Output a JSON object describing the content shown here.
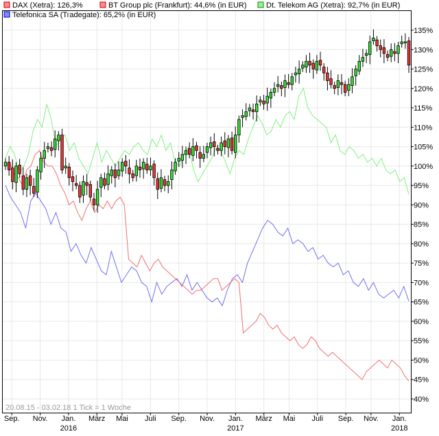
{
  "chart_data": {
    "type": "line",
    "legend": [
      {
        "key": "dax",
        "label": "DAX (Xetra): 126,3%",
        "color": "#ff0000"
      },
      {
        "key": "bt",
        "label": "BT Group plc (Frankfurt): 44,6% (in EUR)",
        "color": "#ff0000"
      },
      {
        "key": "dtk",
        "label": "Dt. Telekom AG (Xetra): 92,7% (in EUR)",
        "color": "#00cc00"
      },
      {
        "key": "tef",
        "label": "Telefonica SA (Tradegate): 65,2% (in EUR)",
        "color": "#0000ff"
      }
    ],
    "footer": "20.08.15 - 03.02.18    1 Tick = 1 Woche",
    "y_ticks": [
      {
        "v": 40,
        "label": "40%"
      },
      {
        "v": 45,
        "label": "45%"
      },
      {
        "v": 50,
        "label": "50%"
      },
      {
        "v": 55,
        "label": "55%"
      },
      {
        "v": 60,
        "label": "60%"
      },
      {
        "v": 65,
        "label": "65%"
      },
      {
        "v": 70,
        "label": "70%"
      },
      {
        "v": 75,
        "label": "75%"
      },
      {
        "v": 80,
        "label": "80%"
      },
      {
        "v": 85,
        "label": "85%"
      },
      {
        "v": 90,
        "label": "90%"
      },
      {
        "v": 95,
        "label": "95%"
      },
      {
        "v": 100,
        "label": "100%"
      },
      {
        "v": 105,
        "label": "105%"
      },
      {
        "v": 110,
        "label": "110%"
      },
      {
        "v": 115,
        "label": "115%"
      },
      {
        "v": 120,
        "label": "120%"
      },
      {
        "v": 125,
        "label": "125%"
      },
      {
        "v": 130,
        "label": "130%"
      },
      {
        "v": 135,
        "label": "135%"
      }
    ],
    "ylim": [
      37,
      140
    ],
    "x_months": [
      {
        "label": "Sep.",
        "week": 2
      },
      {
        "label": "Nov.",
        "week": 11
      },
      {
        "label": "Jan.",
        "week": 20
      },
      {
        "label": "März",
        "week": 29
      },
      {
        "label": "Mai",
        "week": 37
      },
      {
        "label": "Juli",
        "week": 46
      },
      {
        "label": "Sep.",
        "week": 55
      },
      {
        "label": "Nov.",
        "week": 64
      },
      {
        "label": "Jan.",
        "week": 73
      },
      {
        "label": "März",
        "week": 82
      },
      {
        "label": "Mai",
        "week": 90
      },
      {
        "label": "Juli",
        "week": 99
      },
      {
        "label": "Sep.",
        "week": 108
      },
      {
        "label": "Nov.",
        "week": 116
      },
      {
        "label": "Jan.",
        "week": 125
      }
    ],
    "x_years": [
      {
        "label": "2016",
        "week": 20
      },
      {
        "label": "2017",
        "week": 73
      },
      {
        "label": "2018",
        "week": 125
      }
    ],
    "weeks": 129,
    "dax": [
      101,
      99,
      96,
      100,
      98,
      94,
      97,
      95,
      93,
      99,
      102,
      104,
      105,
      104,
      107,
      108,
      99,
      100,
      97,
      96,
      95,
      92,
      96,
      95,
      92,
      90,
      94,
      97,
      95,
      98,
      99,
      97,
      99,
      101,
      100,
      98,
      97,
      100,
      99,
      101,
      99,
      100,
      97,
      94,
      97,
      95,
      96,
      99,
      101,
      102,
      103,
      104,
      103,
      105,
      104,
      102,
      103,
      105,
      106,
      105,
      104,
      106,
      105,
      107,
      104,
      108,
      112,
      113,
      114,
      115,
      114,
      116,
      117,
      116,
      118,
      119,
      120,
      121,
      120,
      122,
      121,
      123,
      124,
      125,
      126,
      127,
      126,
      125,
      127,
      126,
      124,
      122,
      121,
      120,
      122,
      121,
      119,
      121,
      123,
      125,
      127,
      128,
      129,
      132,
      133,
      131,
      130,
      129,
      128,
      130,
      129,
      131,
      132,
      132,
      126
    ]
  },
  "series_extra": {
    "bt": [
      100,
      101,
      98,
      97,
      95,
      99,
      100,
      103,
      104,
      101,
      100,
      100,
      98,
      95,
      93,
      90,
      91,
      88,
      86,
      89,
      91,
      88,
      90,
      89,
      91,
      89,
      91,
      92,
      90,
      76,
      75,
      74,
      77,
      75,
      73,
      75,
      76,
      74,
      73,
      72,
      71,
      70,
      69,
      68,
      67,
      68,
      68,
      69,
      70,
      71,
      71,
      68,
      69,
      70,
      71,
      70,
      57,
      58,
      59,
      60,
      62,
      61,
      59,
      58,
      59,
      57,
      56,
      55,
      56,
      54,
      53,
      54,
      56,
      55,
      53,
      52,
      51,
      52,
      51,
      50,
      49,
      48,
      47,
      46,
      45,
      47,
      48,
      49,
      50,
      49,
      48,
      50,
      49,
      48,
      46,
      44.6
    ],
    "dtk": [
      102,
      105,
      103,
      98,
      100,
      103,
      109,
      112,
      110,
      116,
      112,
      105,
      107,
      108,
      104,
      106,
      102,
      100,
      98,
      102,
      106,
      101,
      104,
      102,
      100,
      102,
      104,
      103,
      105,
      106,
      104,
      103,
      107,
      105,
      108,
      104,
      106,
      101,
      100,
      103,
      105,
      99,
      96,
      98,
      100,
      102,
      105,
      104,
      101,
      98,
      102,
      104,
      103,
      107,
      110,
      113,
      111,
      108,
      109,
      112,
      110,
      113,
      114,
      112,
      118,
      120,
      115,
      113,
      112,
      111,
      110,
      106,
      108,
      104,
      103,
      105,
      104,
      102,
      103,
      101,
      102,
      100,
      102,
      99,
      98,
      99,
      96,
      97,
      92.7
    ],
    "tef": [
      95,
      92,
      90,
      88,
      84,
      91,
      93,
      91,
      89,
      85,
      88,
      84,
      83,
      78,
      80,
      77,
      75,
      79,
      76,
      73,
      72,
      78,
      74,
      70,
      72,
      74,
      73,
      70,
      69,
      65,
      70,
      67,
      69,
      70,
      71,
      69,
      72,
      68,
      70,
      68,
      66,
      65,
      66,
      64,
      68,
      71,
      72,
      70,
      75,
      78,
      81,
      84,
      86,
      85,
      83,
      82,
      84,
      80,
      81,
      80,
      78,
      79,
      76,
      77,
      75,
      74,
      75,
      72,
      73,
      70,
      69,
      71,
      68,
      70,
      67,
      66,
      67,
      68,
      66,
      69,
      65.2
    ]
  }
}
